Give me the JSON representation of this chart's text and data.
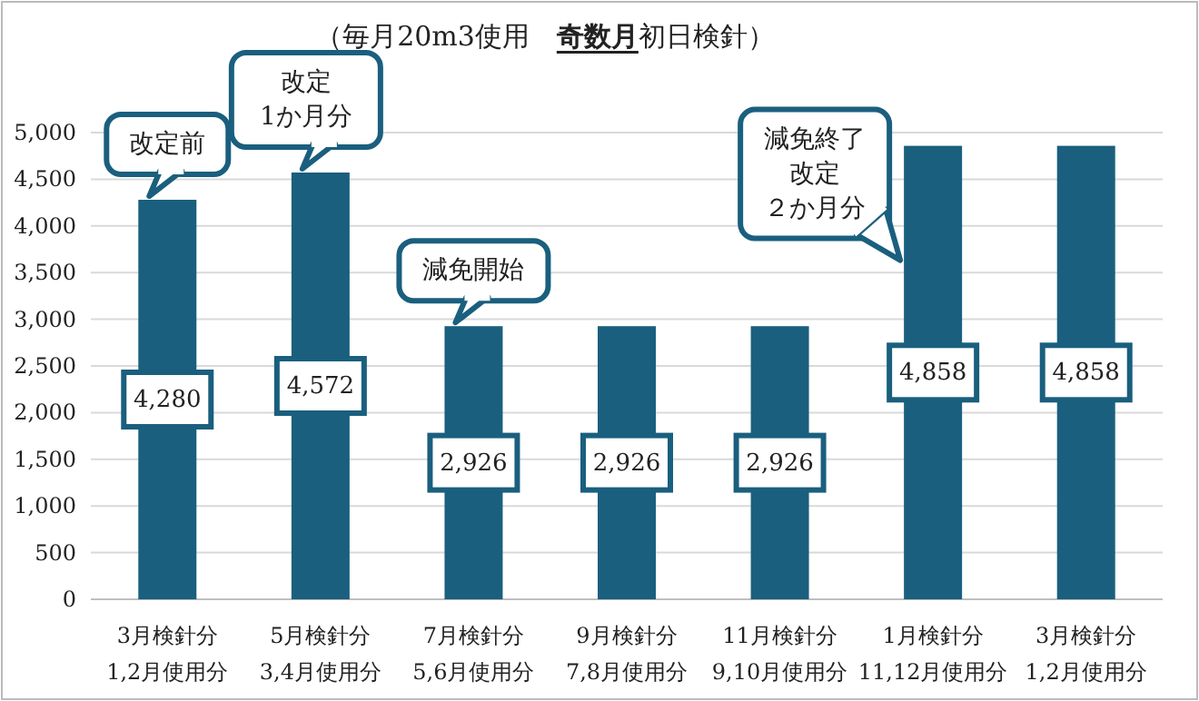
{
  "chart_data": {
    "type": "bar",
    "title": "（毎月20m3使用　**奇数月**初日検針）",
    "categories": [
      "3月検針分\n1,2月使用分",
      "5月検針分\n3,4月使用分",
      "7月検針分\n5,6月使用分",
      "9月検針分\n7,8月使用分",
      "11月検針分\n9,10月使用分",
      "1月検針分\n11,12月使用分",
      "3月検針分\n1,2月使用分"
    ],
    "values": [
      4280,
      4572,
      2926,
      2926,
      2926,
      4858,
      4858
    ],
    "color": "#1a5f7e",
    "ylim": [
      0,
      5000
    ],
    "yticks": [
      {
        "value": 0,
        "label": "0"
      },
      {
        "value": 500,
        "label": "500"
      },
      {
        "value": 1000,
        "label": "1,000"
      },
      {
        "value": 1500,
        "label": "1,500"
      },
      {
        "value": 2000,
        "label": "2,000"
      },
      {
        "value": 2500,
        "label": "2,500"
      },
      {
        "value": 3000,
        "label": "3,000"
      },
      {
        "value": 3500,
        "label": "3,500"
      },
      {
        "value": 4000,
        "label": "4,000"
      },
      {
        "value": 4500,
        "label": "4,500"
      },
      {
        "value": 5000,
        "label": "5,000"
      }
    ],
    "grid": "y",
    "value_labels": [
      "4,280",
      "4,572",
      "2,926",
      "2,926",
      "2,926",
      "4,858",
      "4,858"
    ],
    "annotations": [
      {
        "text": "改定前",
        "x": "3月検針分\n1,2月使用分",
        "y": 4280
      },
      {
        "text": "改定\n1か月分",
        "x": "5月検針分\n3,4月使用分",
        "y": 4572
      },
      {
        "text": "減免開始",
        "x": "7月検針分\n5,6月使用分",
        "y": 2926
      },
      {
        "text": "減免終了",
        "x": "1月検針分\n11,12月使用分",
        "y": 4858
      },
      "改定",
      "２か月分"
    ]
  }
}
